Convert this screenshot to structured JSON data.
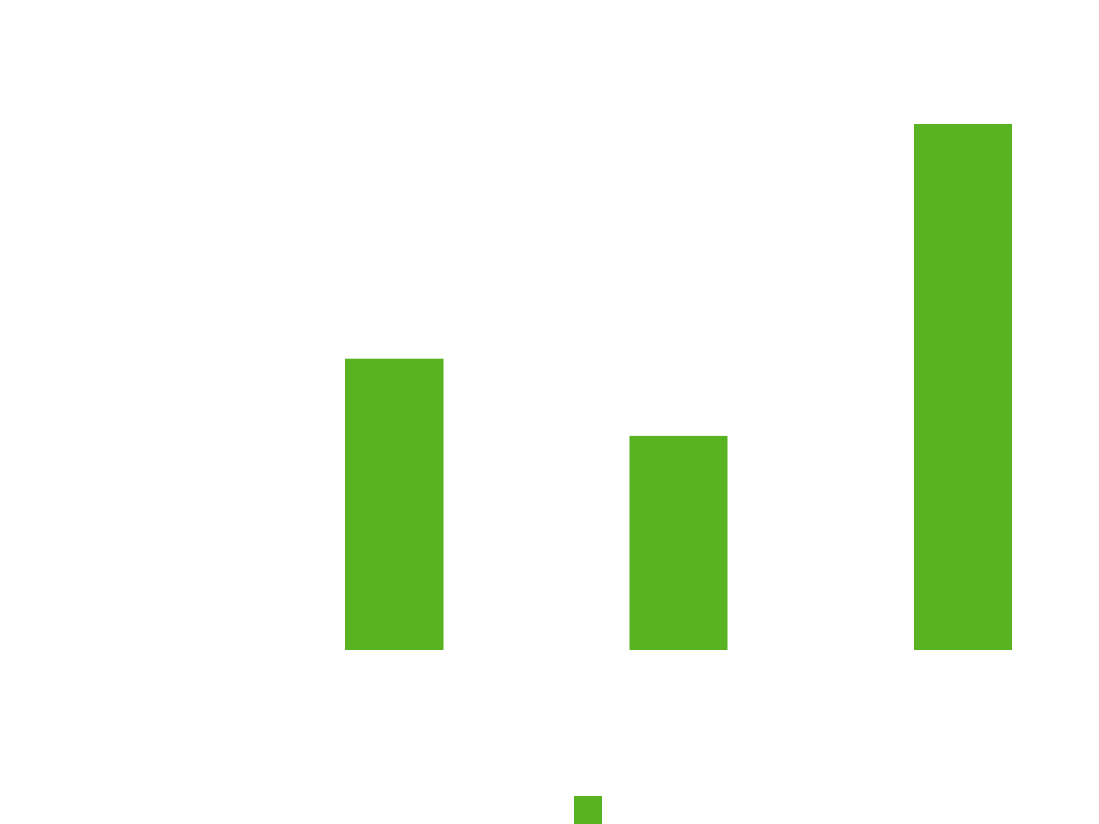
{
  "chart_data": {
    "type": "bar",
    "categories": [
      null,
      null,
      null
    ],
    "series": [
      {
        "color": "#59b320",
        "values": [
          415,
          305,
          750
        ]
      }
    ],
    "ylim": [
      0,
      800
    ],
    "legend": "bottom"
  }
}
